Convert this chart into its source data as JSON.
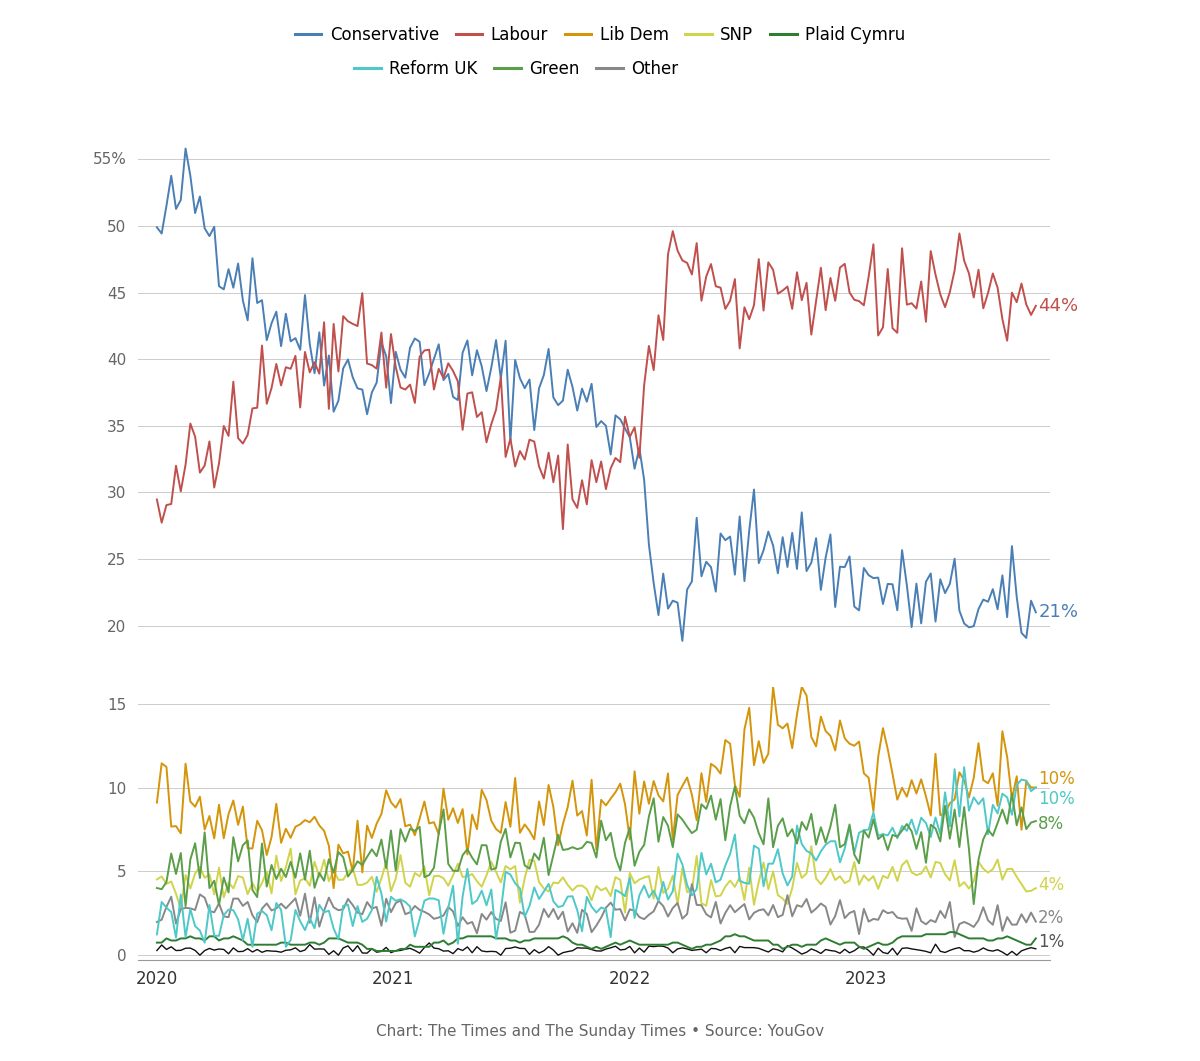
{
  "source_text": "Chart: The Times and The Sunday Times • Source: YouGov",
  "legend_entries": [
    "Conservative",
    "Labour",
    "Lib Dem",
    "SNP",
    "Plaid Cymru",
    "Reform UK",
    "Green",
    "Other"
  ],
  "colors": {
    "Conservative": "#4a7fb5",
    "Labour": "#c0504d",
    "Lib_Dem": "#d4950a",
    "SNP": "#d0d44a",
    "Plaid_Cymru": "#2e7d32",
    "Reform_UK": "#4ec8c8",
    "Green": "#5a9e4a",
    "Other": "#888888"
  },
  "background": "#ffffff",
  "grid_color": "#cccccc",
  "linewidth": 1.4
}
